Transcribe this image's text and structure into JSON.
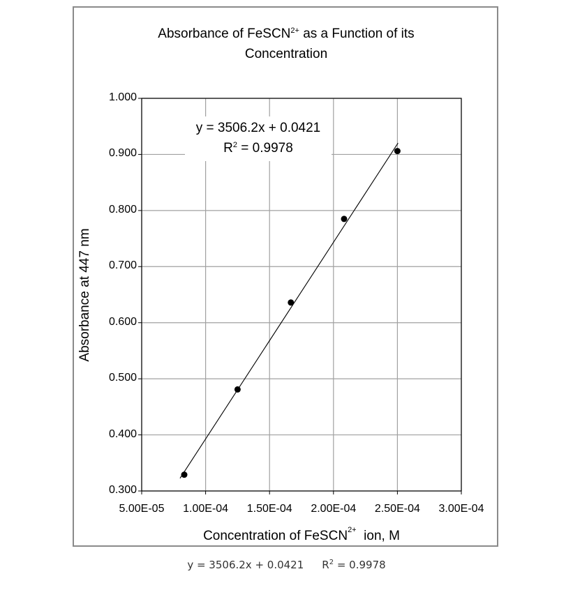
{
  "chart_data": {
    "type": "scatter",
    "title": "Absorbance of FeSCN2+ as a Function of its Concentration",
    "title_parts": {
      "line1_pre": "Absorbance of FeSCN",
      "line1_sup": "2+",
      "line1_post": " as a Function of its",
      "line2": "Concentration"
    },
    "xlabel": "Concentration of FeSCN2+ ion, M",
    "xlabel_parts": {
      "pre": "Concentration of FeSCN",
      "sup": "2+",
      "post": "  ion, M"
    },
    "ylabel": "Absorbance at 447 nm",
    "xlim": [
      5e-05,
      0.0003
    ],
    "ylim": [
      0.3,
      1.0
    ],
    "x_ticks": [
      "5.00E-05",
      "1.00E-04",
      "1.50E-04",
      "2.00E-04",
      "2.50E-04",
      "3.00E-04"
    ],
    "x_tick_values": [
      5e-05,
      0.0001,
      0.00015,
      0.0002,
      0.00025,
      0.0003
    ],
    "y_ticks": [
      "1.000",
      "0.900",
      "0.800",
      "0.700",
      "0.600",
      "0.500",
      "0.400",
      "0.300"
    ],
    "y_tick_values": [
      1.0,
      0.9,
      0.8,
      0.7,
      0.6,
      0.5,
      0.4,
      0.3
    ],
    "grid": true,
    "legend": null,
    "series": [
      {
        "name": "Absorbance",
        "marker": "circle",
        "color": "#000000",
        "x": [
          8.33e-05,
          0.000125,
          0.0001667,
          0.0002083,
          0.00025
        ],
        "y": [
          0.329,
          0.481,
          0.636,
          0.785,
          0.906
        ]
      }
    ],
    "trendline": {
      "type": "linear",
      "slope": 3506.2,
      "intercept": 0.0421,
      "r_squared": 0.9978,
      "x_range": [
        8e-05,
        0.00025
      ],
      "color": "#000000"
    },
    "annotations": {
      "equation": "y = 3506.2x + 0.0421",
      "r2_label": "R",
      "r2_sup": "2",
      "r2_value": " = 0.9978"
    }
  },
  "caption": {
    "equation": "y = 3506.2x + 0.0421",
    "r2_label": "R",
    "r2_sup": "2",
    "r2_value": " = 0.9978"
  },
  "colors": {
    "frame": "#8a8a8a",
    "grid": "#a0a0a0",
    "axis": "#000000",
    "points": "#000000",
    "caption_text": "#333333"
  }
}
